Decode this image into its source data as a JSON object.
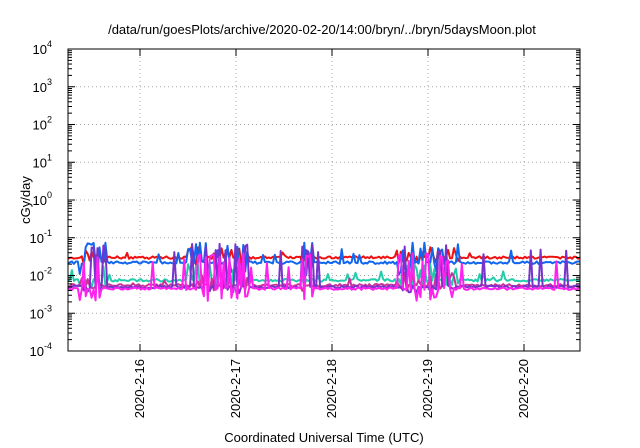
{
  "chart_data": {
    "type": "line",
    "title": "/data/run/goesPlots/archive/2020-02-20/14:00/bryn/../bryn/5daysMoon.plot",
    "xlabel": "Coordinated Universal Time (UTC)",
    "ylabel": "cGy/day",
    "yscale": "log",
    "grid": true,
    "ylim_exp": [
      -4,
      4
    ],
    "xlim": [
      "2020-02-15T06:00",
      "2020-02-20T14:00"
    ],
    "x_ticks": [
      {
        "label": "2020-2-16",
        "date": "2020-02-16T00:00"
      },
      {
        "label": "2020-2-17",
        "date": "2020-02-17T00:00"
      },
      {
        "label": "2020-2-18",
        "date": "2020-02-18T00:00"
      },
      {
        "label": "2020-2-19",
        "date": "2020-02-19T00:00"
      },
      {
        "label": "2020-2-20",
        "date": "2020-02-20T00:00"
      }
    ],
    "y_ticks": [
      {
        "base": "10",
        "exp": "-4"
      },
      {
        "base": "10",
        "exp": "-3"
      },
      {
        "base": "10",
        "exp": "-2"
      },
      {
        "base": "10",
        "exp": "-1"
      },
      {
        "base": "10",
        "exp": "0"
      },
      {
        "base": "10",
        "exp": "1"
      },
      {
        "base": "10",
        "exp": "2"
      },
      {
        "base": "10",
        "exp": "3"
      },
      {
        "base": "10",
        "exp": "4"
      }
    ],
    "series": [
      {
        "color": "#ee1111",
        "base": 0.03,
        "spike": 0.06,
        "dip": 0.022
      },
      {
        "color": "#1166ee",
        "base": 0.022,
        "spike": 0.075,
        "dip": 0.012
      },
      {
        "color": "#22ccaa",
        "base": 0.0075,
        "spike": 0.02,
        "dip": 0.0055
      },
      {
        "color": "#cc3399",
        "base": 0.0055,
        "spike": 0.012,
        "dip": 0.0045
      },
      {
        "color": "#7733cc",
        "base": 0.005,
        "spike": 0.07,
        "dip": 0.004
      },
      {
        "color": "#ff22ee",
        "base": 0.0045,
        "spike": 0.04,
        "dip": 0.0025
      }
    ]
  }
}
